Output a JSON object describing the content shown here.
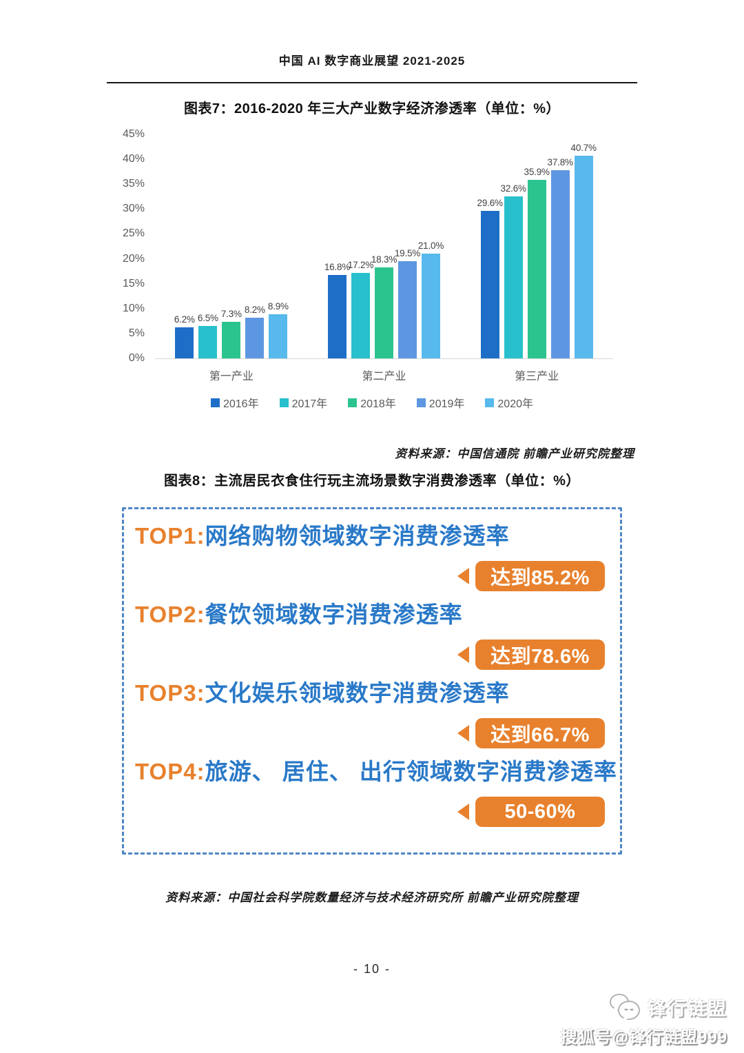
{
  "page": {
    "header": "中国 AI 数字商业展望 2021-2025",
    "page_number": "- 10 -"
  },
  "chart_data": {
    "type": "bar",
    "title": "图表7：2016-2020 年三大产业数字经济渗透率（单位：%）",
    "categories": [
      "第一产业",
      "第二产业",
      "第三产业"
    ],
    "series": [
      {
        "name": "2016年",
        "color": "#1e6ec8",
        "values": [
          6.2,
          16.8,
          29.6
        ],
        "labels": [
          "6.2%",
          "16.8%",
          "29.6%"
        ]
      },
      {
        "name": "2017年",
        "color": "#28c0cc",
        "values": [
          6.5,
          17.2,
          32.6
        ],
        "labels": [
          "6.5%",
          "17.2%",
          "32.6%"
        ]
      },
      {
        "name": "2018年",
        "color": "#2cc48e",
        "values": [
          7.3,
          18.3,
          35.9
        ],
        "labels": [
          "7.3%",
          "18.3%",
          "35.9%"
        ]
      },
      {
        "name": "2019年",
        "color": "#5d97e2",
        "values": [
          8.2,
          19.5,
          37.8
        ],
        "labels": [
          "8.2%",
          "19.5%",
          "37.8%"
        ]
      },
      {
        "name": "2020年",
        "color": "#57b9ec",
        "values": [
          8.9,
          21.0,
          40.7
        ],
        "labels": [
          "8.9%",
          "21.0%",
          "40.7%"
        ]
      }
    ],
    "ylim": [
      0,
      45
    ],
    "yticks": [
      "0%",
      "5%",
      "10%",
      "15%",
      "20%",
      "25%",
      "30%",
      "35%",
      "40%",
      "45%"
    ],
    "xlabel": "",
    "ylabel": "",
    "grid": false,
    "legend_position": "bottom"
  },
  "chart7": {
    "title": "图表7：2016-2020 年三大产业数字经济渗透率（单位：%）",
    "source": "资料来源：中国信通院 前瞻产业研究院整理"
  },
  "chart8": {
    "title": "图表8：主流居民衣食住行玩主流场景数字消费渗透率（单位：%）",
    "source": "资料来源：中国社会科学院数量经济与技术经济研究所 前瞻产业研究院整理",
    "items": [
      {
        "rank": "TOP1:",
        "label": "网络购物领域数字消费渗透率",
        "badge": "达到85.2%"
      },
      {
        "rank": "TOP2:",
        "label": "餐饮领域数字消费渗透率",
        "badge": "达到78.6%"
      },
      {
        "rank": "TOP3:",
        "label": "文化娱乐领域数字消费渗透率",
        "badge": "达到66.7%"
      },
      {
        "rank": "TOP4:",
        "label": "旅游、 居住、 出行领域数字消费渗透率",
        "badge": "50-60%"
      }
    ],
    "accent_orange": "#e8812d",
    "accent_blue": "#2a79c8",
    "border_blue": "#4e86c6"
  },
  "watermark": {
    "logo_icon": "two-speech-bubbles-icon",
    "logo_text": "锋行链盟",
    "account_text": "搜狐号@锋行链盟999"
  }
}
